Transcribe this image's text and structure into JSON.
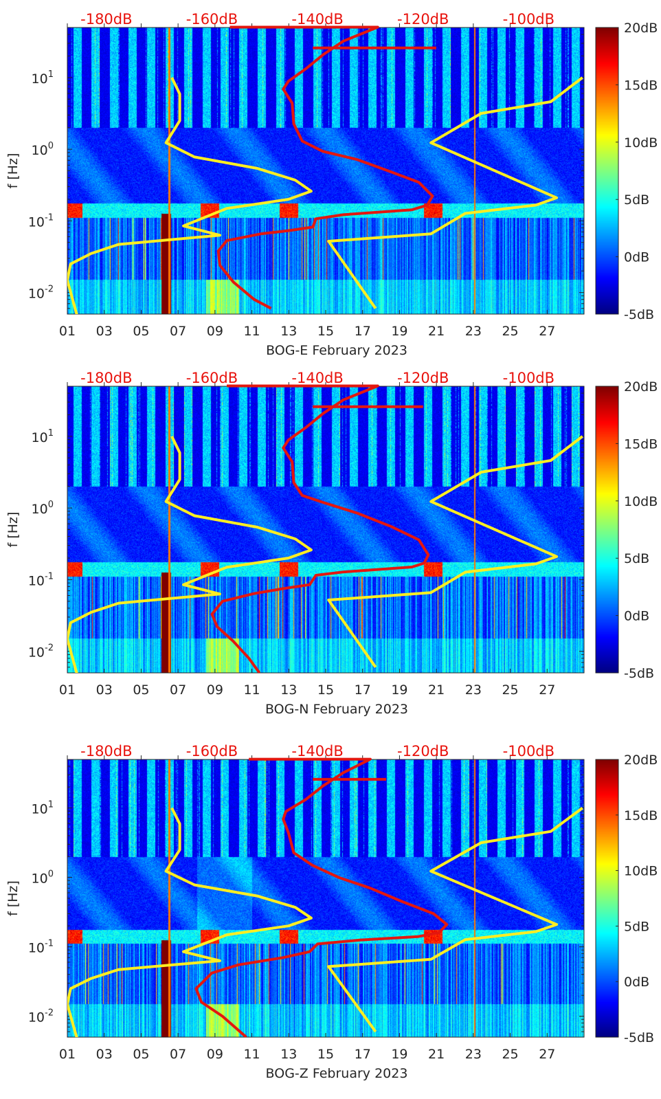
{
  "chart_data": {
    "type": "heatmap",
    "x_unit": "day of February 2023",
    "x_range": [
      1,
      29
    ],
    "x_ticks": [
      "01",
      "03",
      "05",
      "07",
      "09",
      "11",
      "13",
      "15",
      "17",
      "19",
      "21",
      "23",
      "25",
      "27"
    ],
    "y_label": "f [Hz]",
    "y_scale": "log",
    "y_range": [
      0.005,
      50
    ],
    "y_ticks": [
      {
        "base": "10",
        "exp": "1",
        "value": 10
      },
      {
        "base": "10",
        "exp": "0",
        "value": 1
      },
      {
        "base": "10",
        "exp": "-1",
        "value": 0.1
      },
      {
        "base": "10",
        "exp": "-2",
        "value": 0.01
      }
    ],
    "top_axis": {
      "labels": [
        "-180dB",
        "-160dB",
        "-140dB",
        "-120dB",
        "-100dB"
      ],
      "values": [
        -180,
        -160,
        -140,
        -120,
        -100
      ],
      "range_db": [
        -187.4,
        -89.5
      ],
      "color": "#e8120c"
    },
    "colorbar": {
      "labels": [
        "20dB",
        "15dB",
        "10dB",
        "5dB",
        "0dB",
        "-5dB"
      ],
      "values": [
        20,
        15,
        10,
        5,
        0,
        -5
      ],
      "range": [
        -5,
        20
      ],
      "colormap": "jet"
    },
    "curve_colors": {
      "low_model": "#ffee22",
      "high_model": "#ffee22",
      "station": "#e3170f"
    },
    "low_model_curve": [
      [
        -167.6,
        10
      ],
      [
        -166.1,
        5.9
      ],
      [
        -166.1,
        2.5
      ],
      [
        -168.7,
        1.23
      ],
      [
        -163.3,
        0.78
      ],
      [
        -151.4,
        0.54
      ],
      [
        -144.2,
        0.37
      ],
      [
        -141.2,
        0.26
      ],
      [
        -145.5,
        0.2
      ],
      [
        -157.2,
        0.149
      ],
      [
        -165.4,
        0.085
      ],
      [
        -158.5,
        0.063
      ],
      [
        -177.7,
        0.047
      ],
      [
        -182.9,
        0.035
      ],
      [
        -186.8,
        0.025
      ],
      [
        -187.4,
        0.0148
      ],
      [
        -185.6,
        0.0049
      ]
    ],
    "high_model_curve": [
      [
        -89.8,
        10
      ],
      [
        -95.8,
        4.6
      ],
      [
        -109.0,
        3.16
      ],
      [
        -118.5,
        1.23
      ],
      [
        -94.7,
        0.21
      ],
      [
        -98.6,
        0.166
      ],
      [
        -112.0,
        0.127
      ],
      [
        -118.5,
        0.066
      ],
      [
        -137.9,
        0.052
      ],
      [
        -129.0,
        0.006
      ]
    ],
    "panels": [
      {
        "xlabel": "BOG-E February 2023",
        "station_curve": [
          [
            -156.6,
            50.5
          ],
          [
            -141.3,
            50.5
          ],
          [
            -128.6,
            50.5
          ],
          [
            -135.1,
            32.3
          ],
          [
            -139.0,
            20.7
          ],
          [
            -142.2,
            13.3
          ],
          [
            -145.5,
            8.9
          ],
          [
            -146.5,
            6.9
          ],
          [
            -144.8,
            4.4
          ],
          [
            -144.5,
            2.27
          ],
          [
            -142.9,
            1.3
          ],
          [
            -139.0,
            0.935
          ],
          [
            -132.5,
            0.718
          ],
          [
            -126.0,
            0.48
          ],
          [
            -120.8,
            0.345
          ],
          [
            -118.2,
            0.222
          ],
          [
            -119.2,
            0.166
          ],
          [
            -122.1,
            0.143
          ],
          [
            -135.1,
            0.122
          ],
          [
            -140.3,
            0.107
          ],
          [
            -140.9,
            0.082
          ],
          [
            -145.5,
            0.073
          ],
          [
            -150.7,
            0.066
          ],
          [
            -157.2,
            0.053
          ],
          [
            -158.8,
            0.038
          ],
          [
            -158.5,
            0.024
          ],
          [
            -155.9,
            0.0139
          ],
          [
            -152.0,
            0.008
          ],
          [
            -148.8,
            0.006
          ]
        ],
        "station_spur": [
          [
            -140.9,
            25.9
          ],
          [
            -117.5,
            25.9
          ]
        ]
      },
      {
        "xlabel": "BOG-N February 2023",
        "station_curve": [
          [
            -157.2,
            50.5
          ],
          [
            -141.3,
            50.5
          ],
          [
            -128.6,
            50.5
          ],
          [
            -135.1,
            32.3
          ],
          [
            -139.0,
            20.7
          ],
          [
            -142.2,
            13.3
          ],
          [
            -145.5,
            8.9
          ],
          [
            -146.5,
            6.9
          ],
          [
            -144.8,
            4.4
          ],
          [
            -144.5,
            2.27
          ],
          [
            -142.9,
            1.5
          ],
          [
            -139.0,
            1.2
          ],
          [
            -132.5,
            0.85
          ],
          [
            -126.0,
            0.55
          ],
          [
            -120.8,
            0.36
          ],
          [
            -119.0,
            0.222
          ],
          [
            -119.8,
            0.17
          ],
          [
            -122.1,
            0.15
          ],
          [
            -135.1,
            0.128
          ],
          [
            -140.3,
            0.115
          ],
          [
            -141.5,
            0.085
          ],
          [
            -146.5,
            0.075
          ],
          [
            -152.0,
            0.064
          ],
          [
            -158.0,
            0.05
          ],
          [
            -160.0,
            0.033
          ],
          [
            -159.0,
            0.022
          ],
          [
            -156.0,
            0.0139
          ],
          [
            -153.0,
            0.008
          ],
          [
            -151.0,
            0.005
          ]
        ],
        "station_spur": [
          [
            -140.9,
            25.9
          ],
          [
            -120.0,
            25.9
          ]
        ]
      },
      {
        "xlabel": "BOG-Z February 2023",
        "station_curve": [
          [
            -153.0,
            50.5
          ],
          [
            -141.3,
            50.5
          ],
          [
            -130.0,
            50.5
          ],
          [
            -135.1,
            32.3
          ],
          [
            -139.0,
            20.7
          ],
          [
            -142.2,
            13.3
          ],
          [
            -146.0,
            8.9
          ],
          [
            -146.5,
            6.9
          ],
          [
            -145.5,
            4.4
          ],
          [
            -144.5,
            2.27
          ],
          [
            -141.0,
            1.5
          ],
          [
            -136.0,
            1.0
          ],
          [
            -130.0,
            0.7
          ],
          [
            -124.0,
            0.45
          ],
          [
            -118.0,
            0.3
          ],
          [
            -115.5,
            0.21
          ],
          [
            -117.0,
            0.16
          ],
          [
            -121.0,
            0.14
          ],
          [
            -132.0,
            0.125
          ],
          [
            -140.0,
            0.11
          ],
          [
            -141.5,
            0.085
          ],
          [
            -146.5,
            0.07
          ],
          [
            -155.0,
            0.055
          ],
          [
            -160.0,
            0.042
          ],
          [
            -163.0,
            0.025
          ],
          [
            -162.0,
            0.016
          ],
          [
            -158.0,
            0.01
          ],
          [
            -153.5,
            0.005
          ]
        ],
        "station_spur": [
          [
            -140.9,
            25.9
          ],
          [
            -127.0,
            25.9
          ]
        ]
      }
    ]
  }
}
